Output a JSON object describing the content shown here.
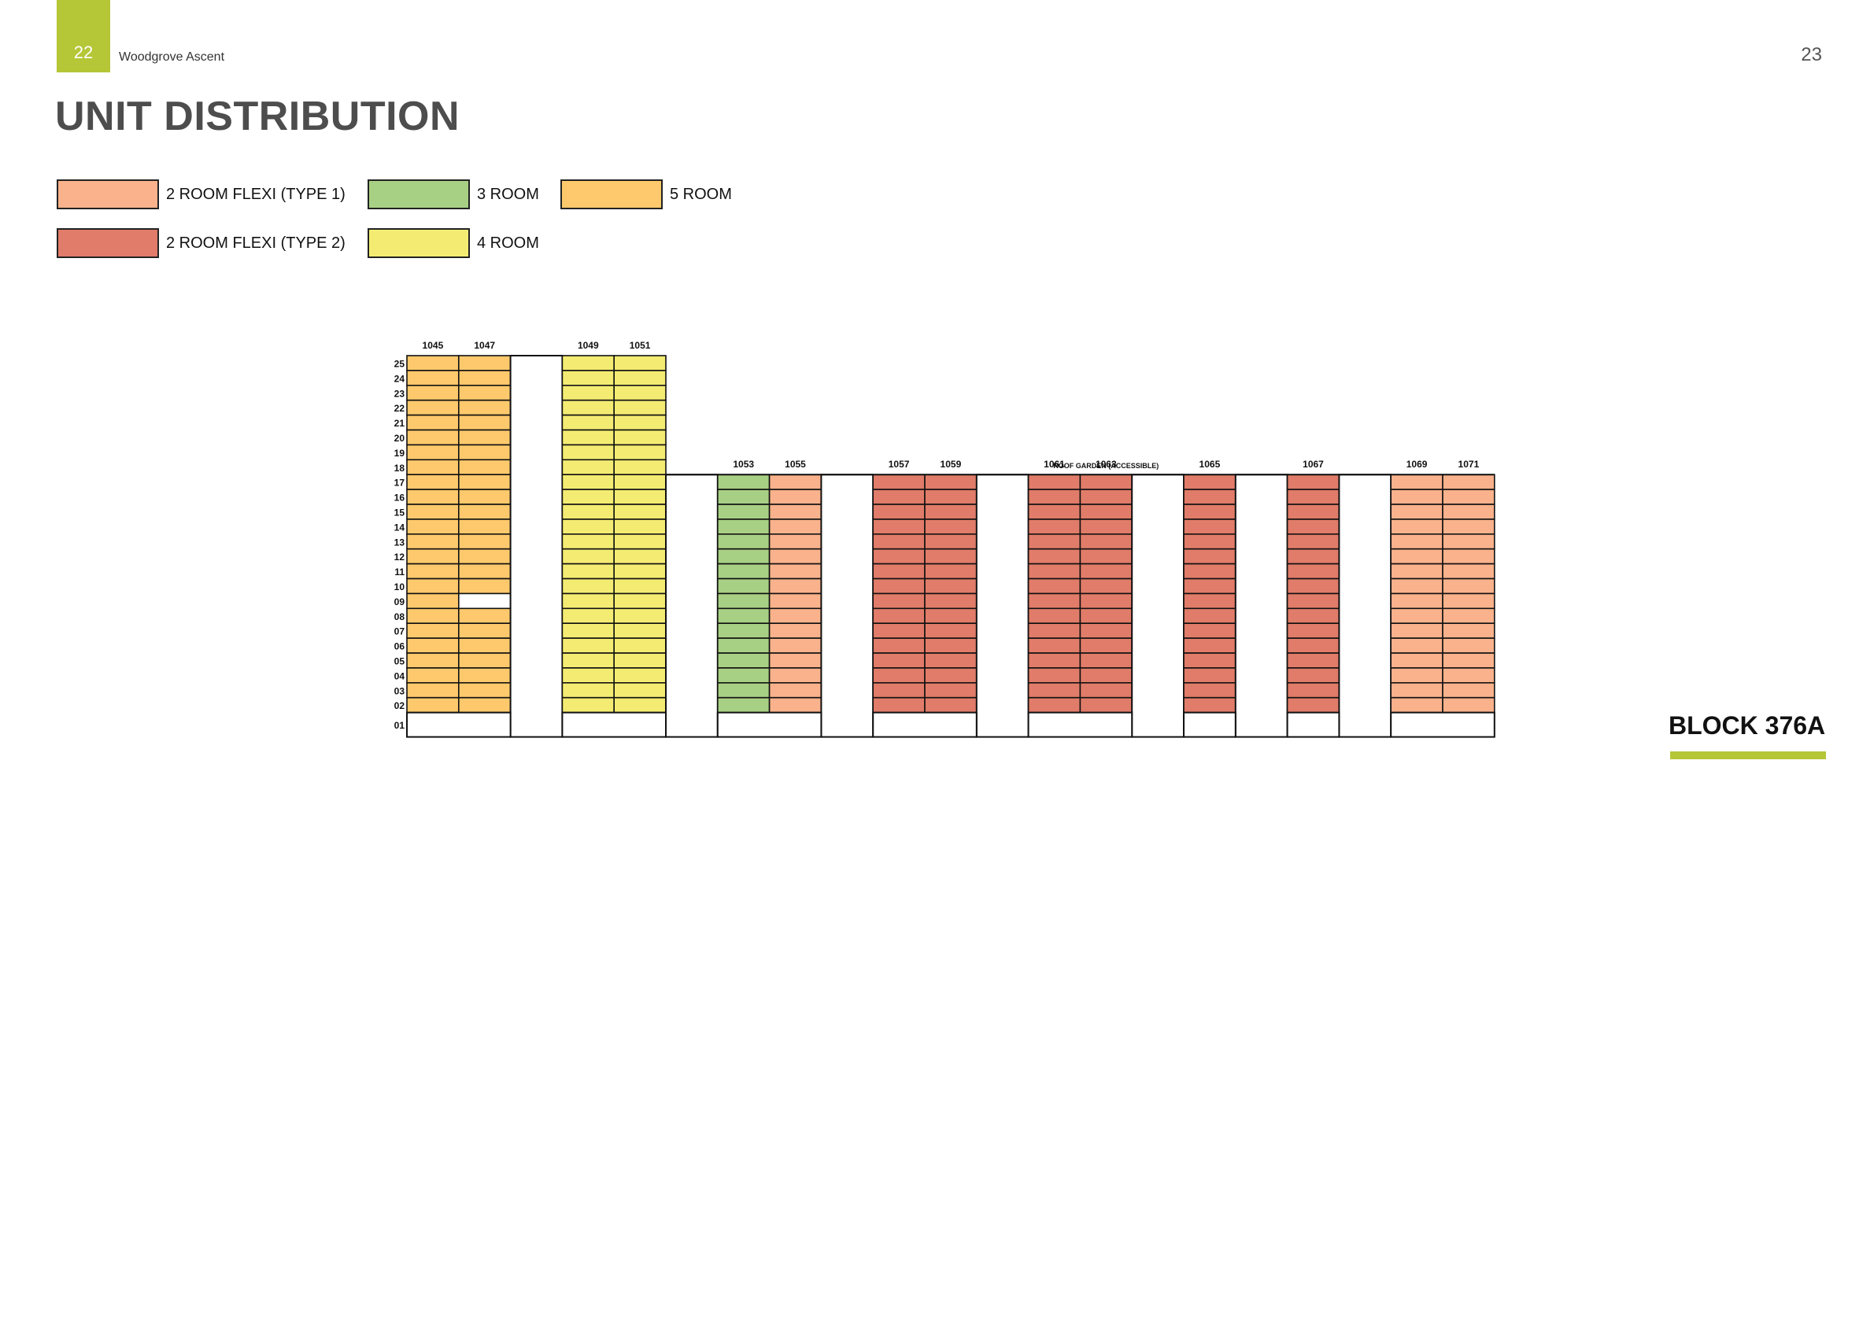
{
  "header": {
    "page_left": "22",
    "doc_title": "Woodgrove Ascent",
    "page_right": "23"
  },
  "title": "UNIT DISTRIBUTION",
  "legend": [
    {
      "label": "2  ROOM FLEXI (TYPE 1)",
      "color": "#f9b28c"
    },
    {
      "label": "3 ROOM",
      "color": "#a8d084"
    },
    {
      "label": "5 ROOM",
      "color": "#fdc96c"
    },
    {
      "label": "2  ROOM FLEXI (TYPE 2)",
      "color": "#e07c69"
    },
    {
      "label": "4 ROOM",
      "color": "#f4ec72"
    }
  ],
  "colors": {
    "accent": "#b5c637",
    "flexi1": "#f9b28c",
    "flexi2": "#e07c69",
    "room3": "#a8d084",
    "room4": "#f4ec72",
    "room5": "#fdc96c",
    "heading": "#4d4d4d"
  },
  "block_label": "BLOCK 376A",
  "roof_garden_label": "ROOF GARDEN (ACCESSIBLE)",
  "floors": [
    "25",
    "24",
    "23",
    "22",
    "21",
    "20",
    "19",
    "18",
    "17",
    "16",
    "15",
    "14",
    "13",
    "12",
    "11",
    "10",
    "09",
    "08",
    "07",
    "06",
    "05",
    "04",
    "03",
    "02",
    "01"
  ],
  "units": [
    {
      "id": "1045",
      "type": "room5",
      "top_floor": 25
    },
    {
      "id": "1047",
      "type": "room5",
      "top_floor": 25,
      "empty_floors": [
        9
      ]
    },
    {
      "id": "",
      "type": "core",
      "top_floor": 25
    },
    {
      "id": "1049",
      "type": "room4",
      "top_floor": 25
    },
    {
      "id": "1051",
      "type": "room4",
      "top_floor": 25
    },
    {
      "id": "",
      "type": "core",
      "top_floor": 17
    },
    {
      "id": "1053",
      "type": "room3",
      "top_floor": 17
    },
    {
      "id": "1055",
      "type": "flexi1",
      "top_floor": 17
    },
    {
      "id": "",
      "type": "core",
      "top_floor": 17
    },
    {
      "id": "1057",
      "type": "flexi2",
      "top_floor": 17
    },
    {
      "id": "1059",
      "type": "flexi2",
      "top_floor": 17
    },
    {
      "id": "",
      "type": "core",
      "top_floor": 17
    },
    {
      "id": "1061",
      "type": "flexi2",
      "top_floor": 17
    },
    {
      "id": "1063",
      "type": "flexi2",
      "top_floor": 17
    },
    {
      "id": "",
      "type": "core",
      "top_floor": 17
    },
    {
      "id": "1065",
      "type": "flexi2",
      "top_floor": 17
    },
    {
      "id": "",
      "type": "core",
      "top_floor": 17
    },
    {
      "id": "1067",
      "type": "flexi2",
      "top_floor": 17
    },
    {
      "id": "",
      "type": "core",
      "top_floor": 17
    },
    {
      "id": "1069",
      "type": "flexi1",
      "top_floor": 17
    },
    {
      "id": "1071",
      "type": "flexi1",
      "top_floor": 17
    }
  ]
}
